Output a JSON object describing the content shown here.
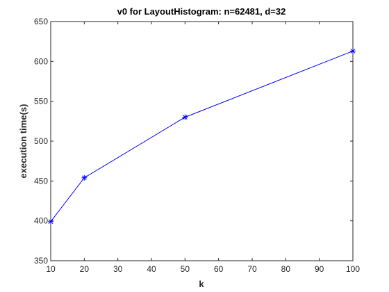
{
  "chart_data": {
    "type": "line",
    "title": "v0 for LayoutHistogram: n=62481, d=32",
    "xlabel": "k",
    "ylabel": "execution time(s)",
    "xlim": [
      10,
      100
    ],
    "ylim": [
      350,
      650
    ],
    "xticks": [
      10,
      20,
      30,
      40,
      50,
      60,
      70,
      80,
      90,
      100
    ],
    "yticks": [
      350,
      400,
      450,
      500,
      550,
      600,
      650
    ],
    "grid": false,
    "marker": "asterisk",
    "color": "#0000FF",
    "series": [
      {
        "x": [
          10,
          20,
          50,
          100
        ],
        "y": [
          399,
          454,
          530,
          613
        ]
      }
    ]
  }
}
